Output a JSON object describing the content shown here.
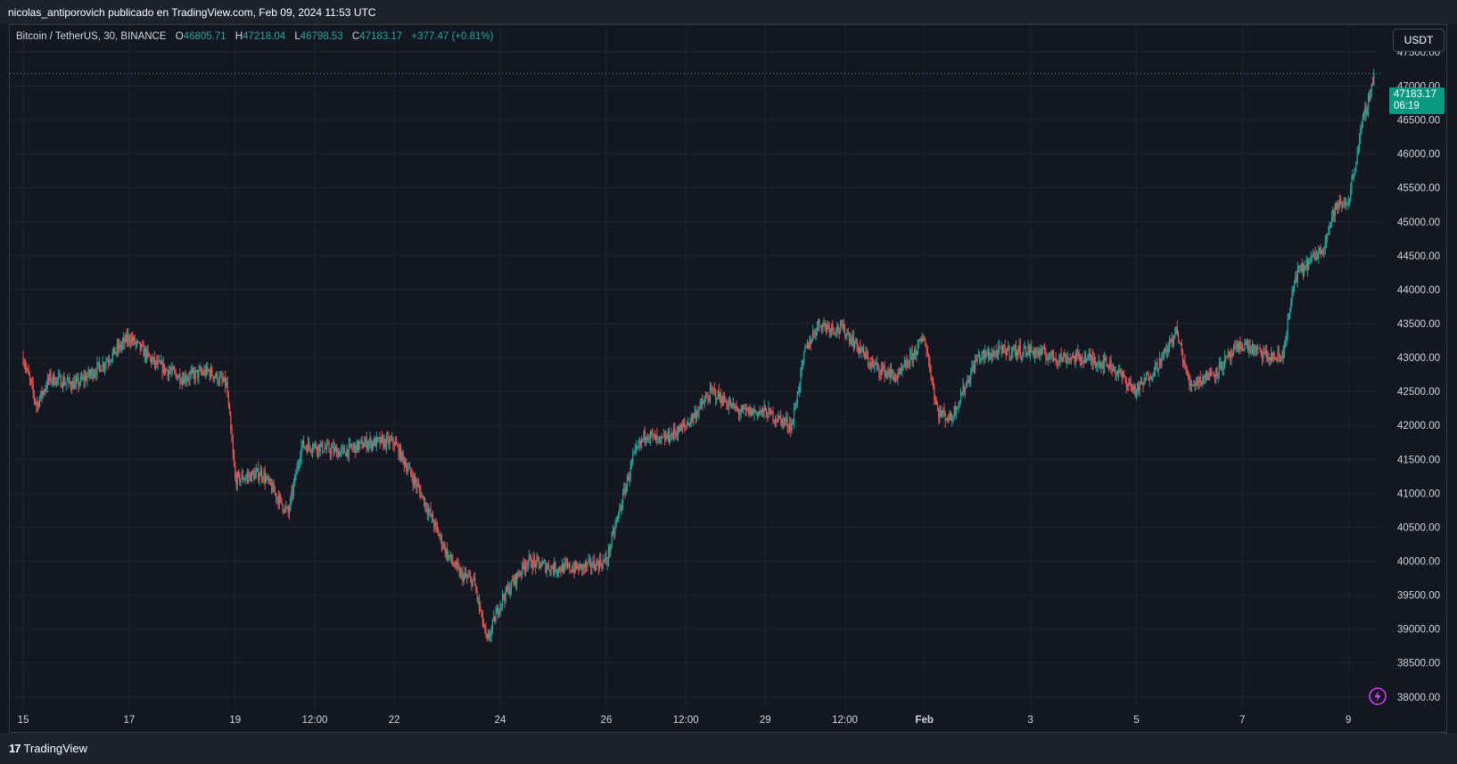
{
  "header": {
    "published_line": "nicolas_antiporovich publicado en TradingView.com, Feb 09, 2024 11:53 UTC"
  },
  "legend": {
    "symbol": "Bitcoin / TetherUS, 30, BINANCE",
    "open_label": "O",
    "open": "46805.71",
    "high_label": "H",
    "high": "47218.04",
    "low_label": "L",
    "low": "46798.53",
    "close_label": "C",
    "close": "47183.17",
    "change": "+377.47 (+0.81%)"
  },
  "price_scale": {
    "currency": "USDT",
    "last_price": "47183.17",
    "countdown": "06:19"
  },
  "footer": {
    "brand": "TradingView"
  },
  "colors": {
    "up": "#26a69a",
    "down": "#ef5350",
    "background": "#131722",
    "grid": "#1f2330",
    "accent_tag": "#089981",
    "lightning": "#e040fb"
  },
  "chart_data": {
    "type": "candlestick",
    "title": "",
    "xlabel": "",
    "ylabel": "",
    "ylim": [
      37800,
      47900
    ],
    "y_ticks": [
      "47500.00",
      "47000.00",
      "46500.00",
      "46000.00",
      "45500.00",
      "45000.00",
      "44500.00",
      "44000.00",
      "43500.00",
      "43000.00",
      "42500.00",
      "42000.00",
      "41500.00",
      "41000.00",
      "40500.00",
      "40000.00",
      "39500.00",
      "39000.00",
      "38500.00",
      "38000.00"
    ],
    "x_ticks": [
      "15",
      "17",
      "19",
      "12:00",
      "22",
      "24",
      "26",
      "12:00",
      "29",
      "12:00",
      "Feb",
      "3",
      "5",
      "7",
      "9"
    ],
    "grid": true,
    "interval": "30 min",
    "price_path": [
      {
        "t": "Jan 15 00:00",
        "price": 43000
      },
      {
        "t": "Jan 15 06:00",
        "price": 42300
      },
      {
        "t": "Jan 15 12:00",
        "price": 42700
      },
      {
        "t": "Jan 16 00:00",
        "price": 42600
      },
      {
        "t": "Jan 16 12:00",
        "price": 42900
      },
      {
        "t": "Jan 17 00:00",
        "price": 43300
      },
      {
        "t": "Jan 17 12:00",
        "price": 42900
      },
      {
        "t": "Jan 18 00:00",
        "price": 42700
      },
      {
        "t": "Jan 18 12:00",
        "price": 42800
      },
      {
        "t": "Jan 18 20:00",
        "price": 42600
      },
      {
        "t": "Jan 19 00:00",
        "price": 41200
      },
      {
        "t": "Jan 19 12:00",
        "price": 41300
      },
      {
        "t": "Jan 20 00:00",
        "price": 40700
      },
      {
        "t": "Jan 20 06:00",
        "price": 41700
      },
      {
        "t": "Jan 20 12:00",
        "price": 41700
      },
      {
        "t": "Jan 21 00:00",
        "price": 41600
      },
      {
        "t": "Jan 21 12:00",
        "price": 41750
      },
      {
        "t": "Jan 22 00:00",
        "price": 41750
      },
      {
        "t": "Jan 22 12:00",
        "price": 41000
      },
      {
        "t": "Jan 23 00:00",
        "price": 40100
      },
      {
        "t": "Jan 23 06:00",
        "price": 39800
      },
      {
        "t": "Jan 23 12:00",
        "price": 39700
      },
      {
        "t": "Jan 23 18:00",
        "price": 38800
      },
      {
        "t": "Jan 24 00:00",
        "price": 39400
      },
      {
        "t": "Jan 24 12:00",
        "price": 40000
      },
      {
        "t": "Jan 25 00:00",
        "price": 39900
      },
      {
        "t": "Jan 25 12:00",
        "price": 39900
      },
      {
        "t": "Jan 26 00:00",
        "price": 40000
      },
      {
        "t": "Jan 26 12:00",
        "price": 41500
      },
      {
        "t": "Jan 26 18:00",
        "price": 41900
      },
      {
        "t": "Jan 27 00:00",
        "price": 41750
      },
      {
        "t": "Jan 27 12:00",
        "price": 42000
      },
      {
        "t": "Jan 28 00:00",
        "price": 42500
      },
      {
        "t": "Jan 28 12:00",
        "price": 42200
      },
      {
        "t": "Jan 29 00:00",
        "price": 42200
      },
      {
        "t": "Jan 29 12:00",
        "price": 42000
      },
      {
        "t": "Jan 29 18:00",
        "price": 43100
      },
      {
        "t": "Jan 30 00:00",
        "price": 43500
      },
      {
        "t": "Jan 30 12:00",
        "price": 43400
      },
      {
        "t": "Jan 31 00:00",
        "price": 42900
      },
      {
        "t": "Jan 31 12:00",
        "price": 42700
      },
      {
        "t": "Feb 01 00:00",
        "price": 43300
      },
      {
        "t": "Feb 01 06:00",
        "price": 42200
      },
      {
        "t": "Feb 01 12:00",
        "price": 42100
      },
      {
        "t": "Feb 02 00:00",
        "price": 43000
      },
      {
        "t": "Feb 02 12:00",
        "price": 43100
      },
      {
        "t": "Feb 03 00:00",
        "price": 43100
      },
      {
        "t": "Feb 03 12:00",
        "price": 43000
      },
      {
        "t": "Feb 04 00:00",
        "price": 43000
      },
      {
        "t": "Feb 04 12:00",
        "price": 42900
      },
      {
        "t": "Feb 05 00:00",
        "price": 42500
      },
      {
        "t": "Feb 05 12:00",
        "price": 43000
      },
      {
        "t": "Feb 05 18:00",
        "price": 43400
      },
      {
        "t": "Feb 06 00:00",
        "price": 42600
      },
      {
        "t": "Feb 06 12:00",
        "price": 42800
      },
      {
        "t": "Feb 07 00:00",
        "price": 43200
      },
      {
        "t": "Feb 07 12:00",
        "price": 43000
      },
      {
        "t": "Feb 07 18:00",
        "price": 43000
      },
      {
        "t": "Feb 08 00:00",
        "price": 44200
      },
      {
        "t": "Feb 08 12:00",
        "price": 44600
      },
      {
        "t": "Feb 08 18:00",
        "price": 45200
      },
      {
        "t": "Feb 09 00:00",
        "price": 45300
      },
      {
        "t": "Feb 09 06:00",
        "price": 46400
      },
      {
        "t": "Feb 09 11:53",
        "price": 47183.17
      }
    ]
  }
}
